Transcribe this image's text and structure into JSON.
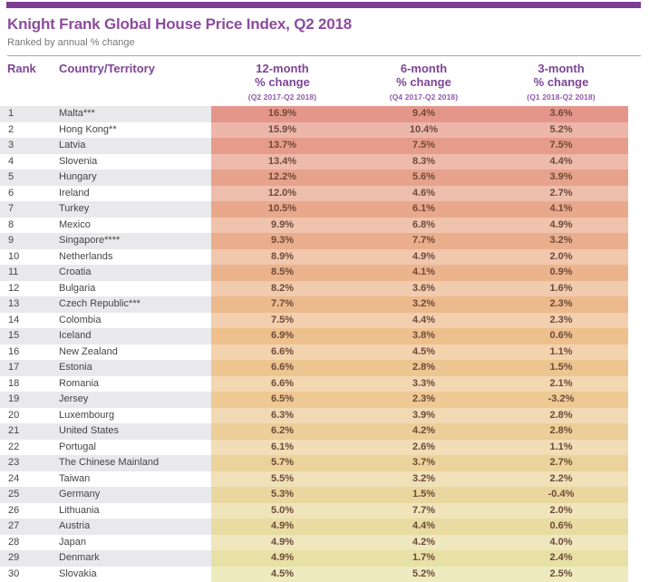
{
  "header": {
    "title": "Knight Frank Global House Price Index, Q2 2018",
    "subtitle": "Ranked by annual % change"
  },
  "table": {
    "rank_label": "Rank",
    "country_label": "Country/Territory",
    "periods": [
      {
        "line1": "12-month",
        "line2": "% change",
        "range": "(Q2 2017-Q2 2018)"
      },
      {
        "line1": "6-month",
        "line2": "% change",
        "range": "(Q4 2017-Q2 2018)"
      },
      {
        "line1": "3-month",
        "line2": "% change",
        "range": "(Q1 2018-Q2 2018)"
      }
    ]
  },
  "style": {
    "accent_purple": "#7C3D95",
    "title_purple": "#8D4B9E",
    "header_purple": "#7E4596",
    "range_purple": "#8F5AAD",
    "subtitle_gray": "#77787B",
    "row_text": "#454547",
    "value_text": "#6D4A3A",
    "stripe_gray": "#E9E9EB",
    "heat_stops": [
      "#E5968B",
      "#EEC18E",
      "#E8E3A8"
    ],
    "heat_light_blend": 0.28
  },
  "chart_data": {
    "type": "table",
    "title": "Knight Frank Global House Price Index, Q2 2018",
    "subtitle": "Ranked by annual % change",
    "columns": [
      "Rank",
      "Country/Territory",
      "12-month % change (Q2 2017-Q2 2018)",
      "6-month % change (Q4 2017-Q2 2018)",
      "3-month % change (Q1 2018-Q2 2018)"
    ],
    "rows": [
      {
        "rank": 1,
        "country": "Malta***",
        "change_12m": "16.9%",
        "change_6m": "9.4%",
        "change_3m": "3.6%"
      },
      {
        "rank": 2,
        "country": "Hong Kong**",
        "change_12m": "15.9%",
        "change_6m": "10.4%",
        "change_3m": "5.2%"
      },
      {
        "rank": 3,
        "country": "Latvia",
        "change_12m": "13.7%",
        "change_6m": "7.5%",
        "change_3m": "7.5%"
      },
      {
        "rank": 4,
        "country": "Slovenia",
        "change_12m": "13.4%",
        "change_6m": "8.3%",
        "change_3m": "4.4%"
      },
      {
        "rank": 5,
        "country": "Hungary",
        "change_12m": "12.2%",
        "change_6m": "5.6%",
        "change_3m": "3.9%"
      },
      {
        "rank": 6,
        "country": "Ireland",
        "change_12m": "12.0%",
        "change_6m": "4.6%",
        "change_3m": "2.7%"
      },
      {
        "rank": 7,
        "country": "Turkey",
        "change_12m": "10.5%",
        "change_6m": "6.1%",
        "change_3m": "4.1%"
      },
      {
        "rank": 8,
        "country": "Mexico",
        "change_12m": "9.9%",
        "change_6m": "6.8%",
        "change_3m": "4.9%"
      },
      {
        "rank": 9,
        "country": "Singapore****",
        "change_12m": "9.3%",
        "change_6m": "7.7%",
        "change_3m": "3.2%"
      },
      {
        "rank": 10,
        "country": "Netherlands",
        "change_12m": "8.9%",
        "change_6m": "4.9%",
        "change_3m": "2.0%"
      },
      {
        "rank": 11,
        "country": "Croatia",
        "change_12m": "8.5%",
        "change_6m": "4.1%",
        "change_3m": "0.9%"
      },
      {
        "rank": 12,
        "country": "Bulgaria",
        "change_12m": "8.2%",
        "change_6m": "3.6%",
        "change_3m": "1.6%"
      },
      {
        "rank": 13,
        "country": "Czech Republic***",
        "change_12m": "7.7%",
        "change_6m": "3.2%",
        "change_3m": "2.3%"
      },
      {
        "rank": 14,
        "country": "Colombia",
        "change_12m": "7.5%",
        "change_6m": "4.4%",
        "change_3m": "2.3%"
      },
      {
        "rank": 15,
        "country": "Iceland",
        "change_12m": "6.9%",
        "change_6m": "3.8%",
        "change_3m": "0.6%"
      },
      {
        "rank": 16,
        "country": "New Zealand",
        "change_12m": "6.6%",
        "change_6m": "4.5%",
        "change_3m": "1.1%"
      },
      {
        "rank": 17,
        "country": "Estonia",
        "change_12m": "6.6%",
        "change_6m": "2.8%",
        "change_3m": "1.5%"
      },
      {
        "rank": 18,
        "country": "Romania",
        "change_12m": "6.6%",
        "change_6m": "3.3%",
        "change_3m": "2.1%"
      },
      {
        "rank": 19,
        "country": "Jersey",
        "change_12m": "6.5%",
        "change_6m": "2.3%",
        "change_3m": "-3.2%"
      },
      {
        "rank": 20,
        "country": "Luxembourg",
        "change_12m": "6.3%",
        "change_6m": "3.9%",
        "change_3m": "2.8%"
      },
      {
        "rank": 21,
        "country": "United States",
        "change_12m": "6.2%",
        "change_6m": "4.2%",
        "change_3m": "2.8%"
      },
      {
        "rank": 22,
        "country": "Portugal",
        "change_12m": "6.1%",
        "change_6m": "2.6%",
        "change_3m": "1.1%"
      },
      {
        "rank": 23,
        "country": "The Chinese Mainland",
        "change_12m": "5.7%",
        "change_6m": "3.7%",
        "change_3m": "2.7%"
      },
      {
        "rank": 24,
        "country": "Taiwan",
        "change_12m": "5.5%",
        "change_6m": "3.2%",
        "change_3m": "2.2%"
      },
      {
        "rank": 25,
        "country": "Germany",
        "change_12m": "5.3%",
        "change_6m": "1.5%",
        "change_3m": "-0.4%"
      },
      {
        "rank": 26,
        "country": "Lithuania",
        "change_12m": "5.0%",
        "change_6m": "7.7%",
        "change_3m": "2.0%"
      },
      {
        "rank": 27,
        "country": "Austria",
        "change_12m": "4.9%",
        "change_6m": "4.4%",
        "change_3m": "0.6%"
      },
      {
        "rank": 28,
        "country": "Japan",
        "change_12m": "4.9%",
        "change_6m": "4.2%",
        "change_3m": "4.0%"
      },
      {
        "rank": 29,
        "country": "Denmark",
        "change_12m": "4.9%",
        "change_6m": "1.7%",
        "change_3m": "2.4%"
      },
      {
        "rank": 30,
        "country": "Slovakia",
        "change_12m": "4.5%",
        "change_6m": "5.2%",
        "change_3m": "2.5%"
      }
    ]
  }
}
